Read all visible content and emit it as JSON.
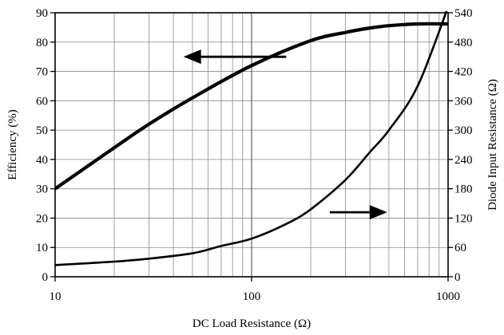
{
  "chart_data": {
    "type": "line",
    "title": "",
    "xlabel": "DC Load Resistance (Ω)",
    "ylabel": "Efficiency (%)",
    "y2label": "Diode Input Resistance (Ω)",
    "x_scale": "log",
    "xlim": [
      10,
      1000
    ],
    "ylim": [
      0,
      90
    ],
    "y2lim": [
      0,
      540
    ],
    "x_ticks": [
      10,
      100,
      1000
    ],
    "x_tick_labels": [
      "10",
      "100",
      "1000"
    ],
    "y_ticks": [
      0,
      10,
      20,
      30,
      40,
      50,
      60,
      70,
      80,
      90
    ],
    "y_tick_labels": [
      "0",
      "10",
      "20",
      "30",
      "40",
      "50",
      "60",
      "70",
      "80",
      "90"
    ],
    "y2_ticks": [
      0,
      60,
      120,
      180,
      240,
      300,
      360,
      420,
      480,
      540
    ],
    "y2_tick_labels": [
      "0",
      "60",
      "120",
      "180",
      "240",
      "300",
      "360",
      "420",
      "480",
      "540"
    ],
    "grid": true,
    "legend": "none",
    "series": [
      {
        "axis": "left",
        "stroke_color": "#000000",
        "x": [
          10,
          20,
          30,
          50,
          100,
          200,
          300,
          400,
          500,
          700,
          1000
        ],
        "y": [
          30,
          44,
          52,
          61,
          72,
          80.5,
          83.3,
          84.8,
          85.6,
          86.2,
          86.2
        ]
      },
      {
        "axis": "right",
        "stroke_color": "#000000",
        "x": [
          10,
          20,
          30,
          50,
          70,
          100,
          150,
          200,
          300,
          400,
          500,
          700,
          1000
        ],
        "y": [
          24,
          31,
          37,
          48,
          63,
          78,
          108,
          138,
          198,
          255,
          300,
          390,
          552
        ]
      }
    ],
    "annotations": [
      {
        "type": "arrow",
        "points_to": "left-axis",
        "x_from": 150,
        "x_to": 45,
        "y": 75,
        "axis": "left"
      },
      {
        "type": "arrow",
        "points_to": "right-axis",
        "x_from": 250,
        "x_to": 490,
        "y": 132,
        "axis": "right"
      }
    ]
  }
}
